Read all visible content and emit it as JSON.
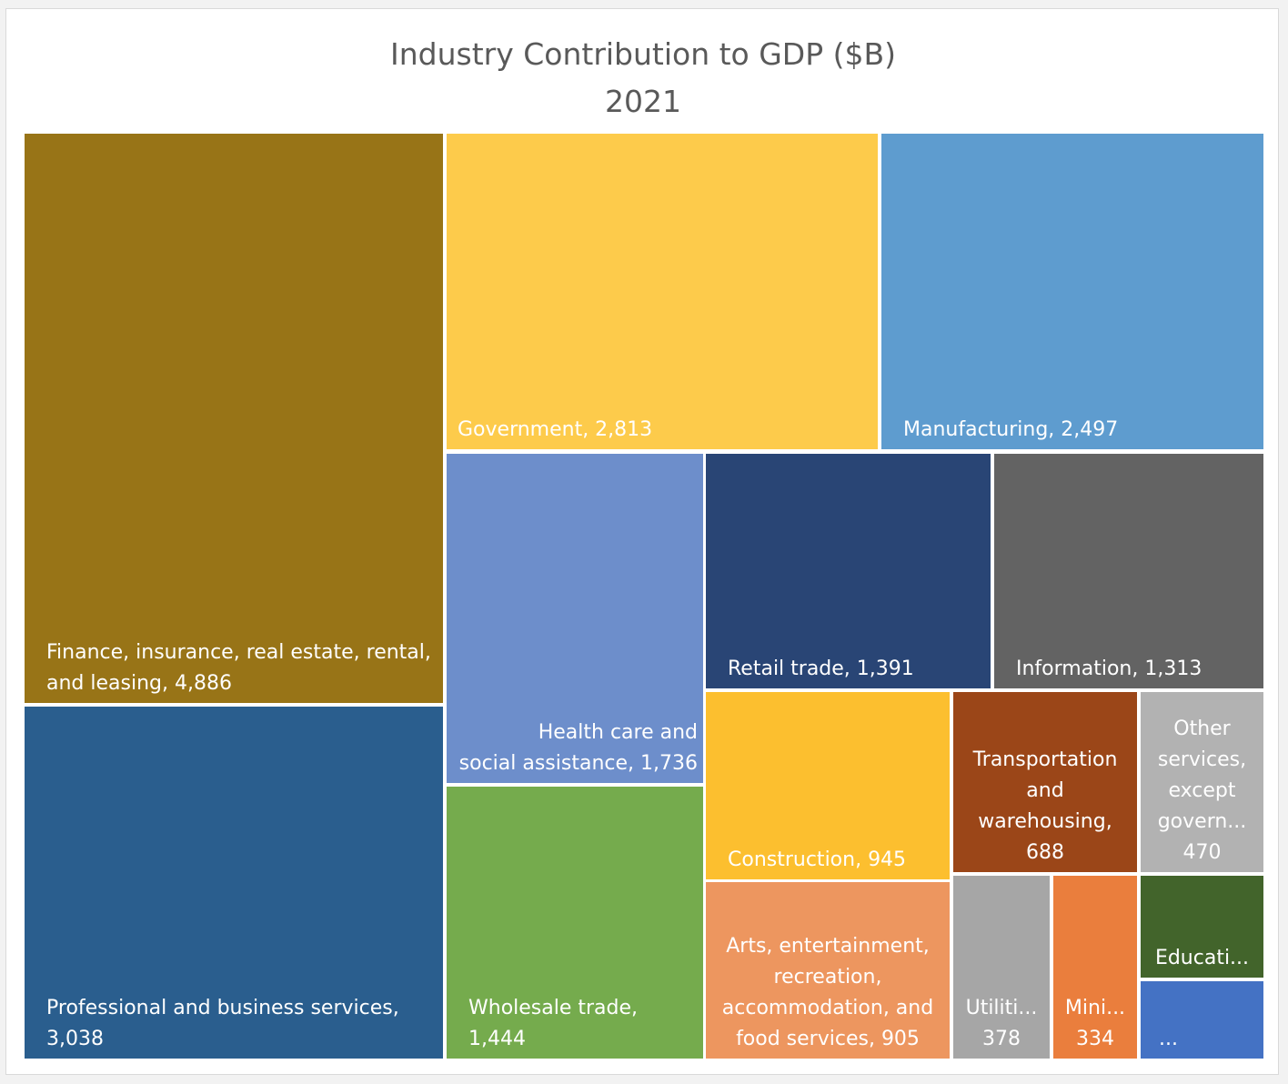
{
  "chart_data": {
    "type": "treemap",
    "title": "Industry Contribution to GDP ($B)",
    "subtitle": "2021",
    "data_labels": "category name and value",
    "legend": "none",
    "items": [
      {
        "id": "finance",
        "name": "Finance, insurance, real estate, rental, and leasing",
        "value": 4886,
        "label_lines": [
          "Finance, insurance, real estate, rental,",
          "and leasing, 4,886"
        ],
        "color": "#987417"
      },
      {
        "id": "professional",
        "name": "Professional and business services",
        "value": 3038,
        "label_lines": [
          "Professional and business services,",
          "3,038"
        ],
        "color": "#2a5e8e"
      },
      {
        "id": "government",
        "name": "Government",
        "value": 2813,
        "label_lines": [
          "Government, 2,813"
        ],
        "color": "#fdcb4b"
      },
      {
        "id": "manufacturing",
        "name": "Manufacturing",
        "value": 2497,
        "label_lines": [
          "Manufacturing, 2,497"
        ],
        "color": "#5e9ccf"
      },
      {
        "id": "health",
        "name": "Health care and social assistance",
        "value": 1736,
        "label_lines": [
          "Health care and",
          "social assistance, 1,736"
        ],
        "color": "#6d8ecb"
      },
      {
        "id": "wholesale",
        "name": "Wholesale trade",
        "value": 1444,
        "label_lines": [
          "Wholesale trade,",
          "1,444"
        ],
        "color": "#75ab4d"
      },
      {
        "id": "retail",
        "name": "Retail trade",
        "value": 1391,
        "label_lines": [
          "Retail trade, 1,391"
        ],
        "color": "#294575"
      },
      {
        "id": "information",
        "name": "Information",
        "value": 1313,
        "label_lines": [
          "Information, 1,313"
        ],
        "color": "#636363"
      },
      {
        "id": "construction",
        "name": "Construction",
        "value": 945,
        "label_lines": [
          "Construction, 945"
        ],
        "color": "#fcbf2f"
      },
      {
        "id": "arts",
        "name": "Arts, entertainment, recreation, accommodation, and food services",
        "value": 905,
        "label_lines": [
          "Arts, entertainment,",
          "recreation,",
          "accommodation, and",
          "food services, 905"
        ],
        "color": "#ed965f"
      },
      {
        "id": "transportation",
        "name": "Transportation and warehousing",
        "value": 688,
        "label_lines": [
          "Transportation",
          "and",
          "warehousing,",
          "688"
        ],
        "color": "#9b4618"
      },
      {
        "id": "other",
        "name": "Other services, except government",
        "value": 470,
        "label_lines": [
          "Other",
          "services,",
          "except",
          "govern...",
          "470"
        ],
        "color": "#b2b2b2"
      },
      {
        "id": "utilities",
        "name": "Utilities",
        "value": 378,
        "label_lines": [
          "Utiliti...",
          "378"
        ],
        "color": "#a6a6a6"
      },
      {
        "id": "mining",
        "name": "Mining",
        "value": 334,
        "label_lines": [
          "Mini...",
          "334"
        ],
        "color": "#ea7e3d"
      },
      {
        "id": "education",
        "name": "Educational services",
        "value": null,
        "label_lines": [
          "Educati..."
        ],
        "color": "#42642b"
      },
      {
        "id": "agriculture",
        "name": "",
        "value": null,
        "label_lines": [
          "..."
        ],
        "color": "#4472c4"
      }
    ]
  }
}
